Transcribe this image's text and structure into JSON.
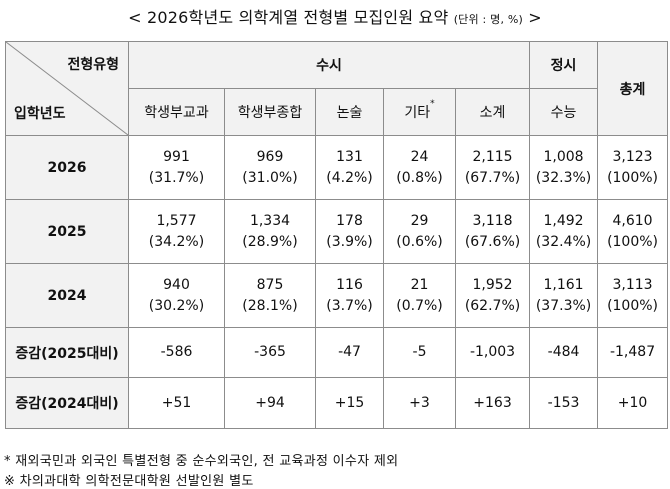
{
  "title": {
    "main": "< 2026학년도 의학계열 전형별 모집인원 요약",
    "unit": "(단위 : 명, %)",
    "close": ">"
  },
  "header": {
    "corner_top": "전형유형",
    "corner_bottom": "입학년도",
    "susi": "수시",
    "jeongsi": "정시",
    "total": "총계",
    "cols": [
      "학생부교과",
      "학생부종합",
      "논술",
      "기타",
      "소계",
      "수능"
    ],
    "etc_mark": "*"
  },
  "rows": [
    {
      "label": "2026",
      "cells": [
        [
          "991",
          "(31.7%)"
        ],
        [
          "969",
          "(31.0%)"
        ],
        [
          "131",
          "(4.2%)"
        ],
        [
          "24",
          "(0.8%)"
        ],
        [
          "2,115",
          "(67.7%)"
        ],
        [
          "1,008",
          "(32.3%)"
        ],
        [
          "3,123",
          "(100%)"
        ]
      ]
    },
    {
      "label": "2025",
      "cells": [
        [
          "1,577",
          "(34.2%)"
        ],
        [
          "1,334",
          "(28.9%)"
        ],
        [
          "178",
          "(3.9%)"
        ],
        [
          "29",
          "(0.6%)"
        ],
        [
          "3,118",
          "(67.6%)"
        ],
        [
          "1,492",
          "(32.4%)"
        ],
        [
          "4,610",
          "(100%)"
        ]
      ]
    },
    {
      "label": "2024",
      "cells": [
        [
          "940",
          "(30.2%)"
        ],
        [
          "875",
          "(28.1%)"
        ],
        [
          "116",
          "(3.7%)"
        ],
        [
          "21",
          "(0.7%)"
        ],
        [
          "1,952",
          "(62.7%)"
        ],
        [
          "1,161",
          "(37.3%)"
        ],
        [
          "3,113",
          "(100%)"
        ]
      ]
    }
  ],
  "diffs": [
    {
      "label": "증감(2025대비)",
      "cells": [
        "-586",
        "-365",
        "-47",
        "-5",
        "-1,003",
        "-484",
        "-1,487"
      ]
    },
    {
      "label": "증감(2024대비)",
      "cells": [
        "+51",
        "+94",
        "+15",
        "+3",
        "+163",
        "-153",
        "+10"
      ]
    }
  ],
  "notes": [
    "* 재외국민과 외국인 특별전형 중 순수외국인, 전 교육과정 이수자 제외",
    "※ 차의과대학 의학전문대학원 선발인원 별도"
  ]
}
